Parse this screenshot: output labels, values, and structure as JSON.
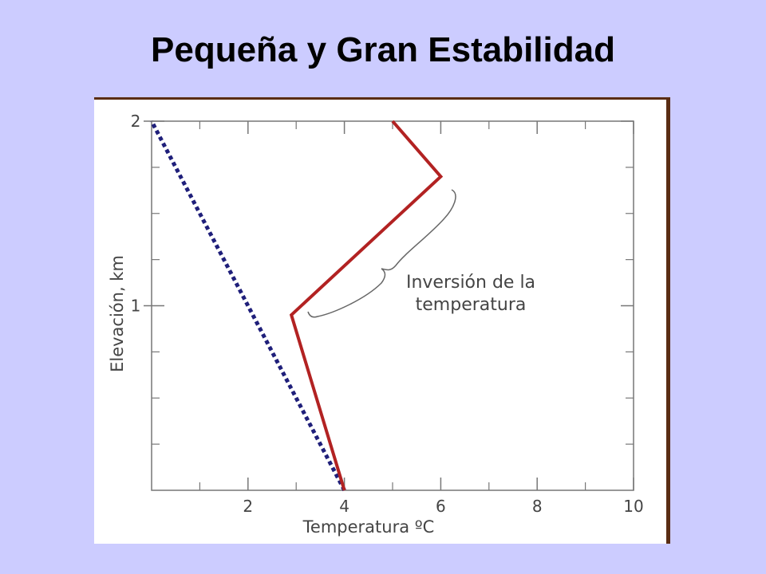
{
  "slide": {
    "title": "Pequeña y Gran Estabilidad"
  },
  "colors": {
    "background": "#ccccff",
    "frame_border": "#5a2d14",
    "inversion_line": "#b22222",
    "dotted_line": "#1f1f7a",
    "axis": "#777777"
  },
  "chart_data": {
    "type": "line",
    "xlabel": "Temperatura ºC",
    "ylabel": "Elevación, km",
    "xlim": [
      0,
      10
    ],
    "ylim": [
      0,
      2
    ],
    "x_ticks": [
      {
        "value": 2,
        "label": "2"
      },
      {
        "value": 4,
        "label": "4"
      },
      {
        "value": 6,
        "label": "6"
      },
      {
        "value": 8,
        "label": "8"
      },
      {
        "value": 10,
        "label": "10"
      }
    ],
    "x_minor_ticks": [
      1,
      3,
      5,
      7,
      9
    ],
    "y_ticks": [
      {
        "value": 1,
        "label": "1"
      },
      {
        "value": 2,
        "label": "2"
      }
    ],
    "y_minor_ticks": [
      0.25,
      0.5,
      0.75,
      1.25,
      1.5,
      1.75
    ],
    "grid": false,
    "series": [
      {
        "style": "dotted",
        "color": "#1f1f7a",
        "points": [
          [
            4.0,
            0.0
          ],
          [
            0.0,
            2.0
          ]
        ]
      },
      {
        "style": "solid",
        "color": "#b22222",
        "points": [
          [
            4.0,
            0.0
          ],
          [
            2.9,
            0.95
          ],
          [
            6.0,
            1.7
          ],
          [
            5.0,
            2.0
          ]
        ]
      }
    ],
    "annotations": [
      {
        "line1": "Inversión de la",
        "line2": "temperatura"
      }
    ]
  }
}
